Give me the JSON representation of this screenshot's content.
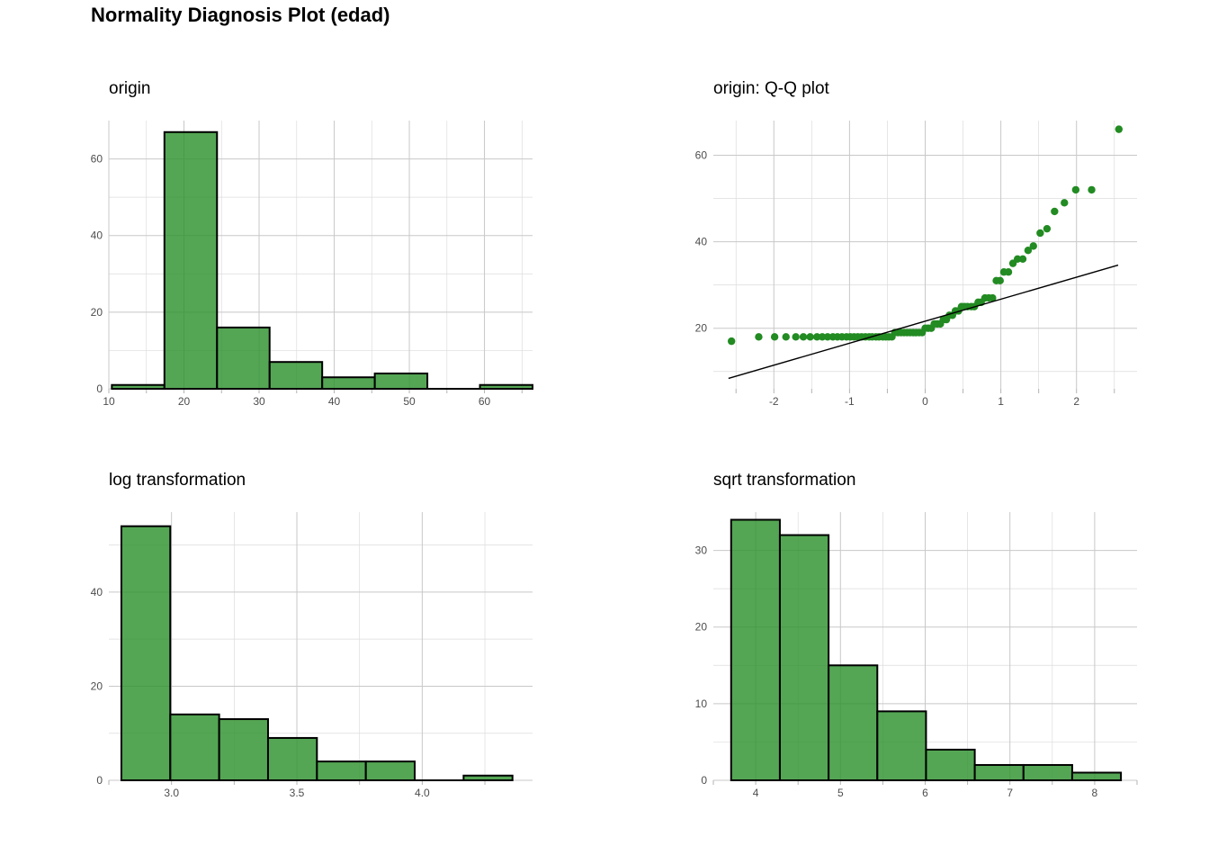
{
  "title": "Normality Diagnosis Plot (edad)",
  "colors": {
    "fill": "#2e922e",
    "fill_opacity": 0.82,
    "stroke": "#000000",
    "point": "#228b22",
    "line": "#000000",
    "grid": "#c8c8c8"
  },
  "chart_data": [
    {
      "type": "bar",
      "subtype": "histogram",
      "title": "origin",
      "bin_edges": [
        10.4,
        17.4,
        24.4,
        31.4,
        38.4,
        45.4,
        52.4,
        59.4,
        66.4
      ],
      "values": [
        1,
        67,
        16,
        7,
        3,
        4,
        0,
        1
      ],
      "xlim": [
        10,
        66.4
      ],
      "ylim": [
        0,
        70
      ],
      "x_ticks": [
        10,
        20,
        30,
        40,
        50,
        60
      ],
      "y_ticks": [
        0,
        20,
        40,
        60
      ],
      "grid": true
    },
    {
      "type": "scatter",
      "subtype": "qq",
      "title": "origin: Q-Q plot",
      "points": [
        [
          -2.56,
          17
        ],
        [
          -2.2,
          18
        ],
        [
          -1.99,
          18
        ],
        [
          -1.84,
          18
        ],
        [
          -1.71,
          18
        ],
        [
          -1.61,
          18
        ],
        [
          -1.52,
          18
        ],
        [
          -1.43,
          18
        ],
        [
          -1.36,
          18
        ],
        [
          -1.29,
          18
        ],
        [
          -1.22,
          18
        ],
        [
          -1.16,
          18
        ],
        [
          -1.1,
          18
        ],
        [
          -1.04,
          18
        ],
        [
          -0.99,
          18
        ],
        [
          -0.94,
          18
        ],
        [
          -0.89,
          18
        ],
        [
          -0.84,
          18
        ],
        [
          -0.79,
          18
        ],
        [
          -0.74,
          18
        ],
        [
          -0.7,
          18
        ],
        [
          -0.65,
          18
        ],
        [
          -0.61,
          18
        ],
        [
          -0.56,
          18
        ],
        [
          -0.52,
          18
        ],
        [
          -0.48,
          18
        ],
        [
          -0.44,
          18
        ],
        [
          -0.4,
          19
        ],
        [
          -0.36,
          19
        ],
        [
          -0.32,
          19
        ],
        [
          -0.28,
          19
        ],
        [
          -0.24,
          19
        ],
        [
          -0.2,
          19
        ],
        [
          -0.16,
          19
        ],
        [
          -0.12,
          19
        ],
        [
          -0.08,
          19
        ],
        [
          -0.04,
          19
        ],
        [
          0.0,
          20
        ],
        [
          0.04,
          20
        ],
        [
          0.08,
          20
        ],
        [
          0.12,
          21
        ],
        [
          0.16,
          21
        ],
        [
          0.2,
          21
        ],
        [
          0.24,
          22
        ],
        [
          0.28,
          22
        ],
        [
          0.32,
          23
        ],
        [
          0.36,
          23
        ],
        [
          0.4,
          24
        ],
        [
          0.44,
          24
        ],
        [
          0.48,
          25
        ],
        [
          0.52,
          25
        ],
        [
          0.56,
          25
        ],
        [
          0.61,
          25
        ],
        [
          0.65,
          25
        ],
        [
          0.7,
          26
        ],
        [
          0.74,
          26
        ],
        [
          0.79,
          27
        ],
        [
          0.84,
          27
        ],
        [
          0.89,
          27
        ],
        [
          0.94,
          31
        ],
        [
          0.99,
          31
        ],
        [
          1.04,
          33
        ],
        [
          1.1,
          33
        ],
        [
          1.16,
          35
        ],
        [
          1.22,
          36
        ],
        [
          1.29,
          36
        ],
        [
          1.36,
          38
        ],
        [
          1.43,
          39
        ],
        [
          1.52,
          42
        ],
        [
          1.61,
          43
        ],
        [
          1.71,
          47
        ],
        [
          1.84,
          49
        ],
        [
          1.99,
          52
        ],
        [
          2.2,
          52
        ],
        [
          2.56,
          66
        ]
      ],
      "line": [
        [
          -2.6,
          8.4
        ],
        [
          2.55,
          34.6
        ]
      ],
      "xlim": [
        -2.8,
        2.8
      ],
      "ylim": [
        6,
        68
      ],
      "x_ticks": [
        -2,
        -1,
        0,
        1,
        2
      ],
      "x_tick_labels": [
        "-2",
        "-1",
        "0",
        "1",
        "2"
      ],
      "y_ticks": [
        20,
        40,
        60
      ],
      "grid": true
    },
    {
      "type": "bar",
      "subtype": "histogram",
      "title": "log transformation",
      "bin_edges": [
        2.8,
        2.995,
        3.19,
        3.385,
        3.58,
        3.775,
        3.97,
        4.165,
        4.36
      ],
      "values": [
        54,
        14,
        13,
        9,
        4,
        4,
        0,
        1
      ],
      "xlim": [
        2.75,
        4.44
      ],
      "ylim": [
        0,
        57
      ],
      "x_ticks": [
        3.0,
        3.5,
        4.0
      ],
      "x_tick_labels": [
        "3.0",
        "3.5",
        "4.0"
      ],
      "y_ticks": [
        0,
        20,
        40
      ],
      "grid": true
    },
    {
      "type": "bar",
      "subtype": "histogram",
      "title": "sqrt transformation",
      "bin_edges": [
        3.71,
        4.285,
        4.86,
        5.435,
        6.01,
        6.585,
        7.16,
        7.735,
        8.31
      ],
      "values": [
        34,
        32,
        15,
        9,
        4,
        2,
        2,
        1
      ],
      "xlim": [
        3.5,
        8.5
      ],
      "ylim": [
        0,
        35
      ],
      "x_ticks": [
        4,
        5,
        6,
        7,
        8
      ],
      "y_ticks": [
        0,
        10,
        20,
        30
      ],
      "grid": true
    }
  ]
}
